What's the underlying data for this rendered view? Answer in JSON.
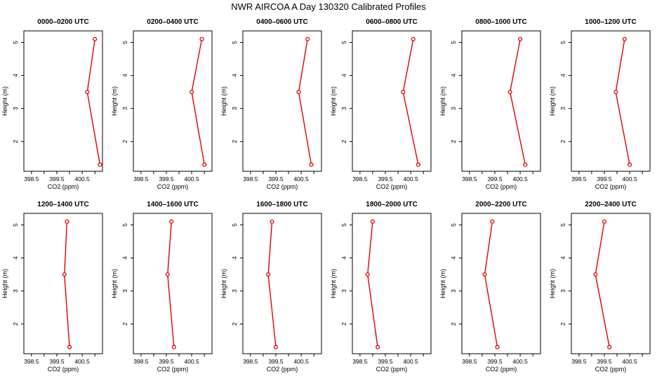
{
  "title": "NWR AIRCOA A  Day 130320  Calibrated Profiles",
  "colors": {
    "series": "#dd0000",
    "axis": "#000000",
    "background": "#ffffff"
  },
  "chart_data": [
    {
      "type": "line",
      "title": "0000–0200 UTC",
      "xlabel": "CO2 (ppm)",
      "ylabel": "Height (m)",
      "xlim": [
        398.2,
        401.3
      ],
      "ylim": [
        1.1,
        5.35
      ],
      "xticks": [
        "398.5",
        "399.5",
        "400.5"
      ],
      "yticks": [
        "2",
        "3",
        "4",
        "5"
      ],
      "grid": false,
      "points": [
        {
          "x": 401.2,
          "y": 1.3
        },
        {
          "x": 400.7,
          "y": 3.5
        },
        {
          "x": 401.0,
          "y": 5.1
        }
      ]
    },
    {
      "type": "line",
      "title": "0200–0400 UTC",
      "xlabel": "CO2 (ppm)",
      "ylabel": "Height (m)",
      "xlim": [
        398.2,
        401.3
      ],
      "ylim": [
        1.1,
        5.35
      ],
      "xticks": [
        "398.5",
        "399.5",
        "400.5"
      ],
      "yticks": [
        "2",
        "3",
        "4",
        "5"
      ],
      "grid": false,
      "points": [
        {
          "x": 401.0,
          "y": 1.3
        },
        {
          "x": 400.5,
          "y": 3.5
        },
        {
          "x": 400.9,
          "y": 5.1
        }
      ]
    },
    {
      "type": "line",
      "title": "0400–0600 UTC",
      "xlabel": "CO2 (ppm)",
      "ylabel": "Height (m)",
      "xlim": [
        398.2,
        401.3
      ],
      "ylim": [
        1.1,
        5.35
      ],
      "xticks": [
        "398.5",
        "399.5",
        "400.5"
      ],
      "yticks": [
        "2",
        "3",
        "4",
        "5"
      ],
      "grid": false,
      "points": [
        {
          "x": 400.9,
          "y": 1.3
        },
        {
          "x": 400.4,
          "y": 3.5
        },
        {
          "x": 400.75,
          "y": 5.1
        }
      ]
    },
    {
      "type": "line",
      "title": "0600–0800 UTC",
      "xlabel": "CO2 (ppm)",
      "ylabel": "Height (m)",
      "xlim": [
        398.2,
        401.3
      ],
      "ylim": [
        1.1,
        5.35
      ],
      "xticks": [
        "398.5",
        "399.5",
        "400.5"
      ],
      "yticks": [
        "2",
        "3",
        "4",
        "5"
      ],
      "grid": false,
      "points": [
        {
          "x": 400.8,
          "y": 1.3
        },
        {
          "x": 400.2,
          "y": 3.5
        },
        {
          "x": 400.6,
          "y": 5.1
        }
      ]
    },
    {
      "type": "line",
      "title": "0800–1000 UTC",
      "xlabel": "CO2 (ppm)",
      "ylabel": "Height (m)",
      "xlim": [
        398.2,
        401.3
      ],
      "ylim": [
        1.1,
        5.35
      ],
      "xticks": [
        "398.5",
        "399.5",
        "400.5"
      ],
      "yticks": [
        "2",
        "3",
        "4",
        "5"
      ],
      "grid": false,
      "points": [
        {
          "x": 400.7,
          "y": 1.3
        },
        {
          "x": 400.1,
          "y": 3.5
        },
        {
          "x": 400.5,
          "y": 5.1
        }
      ]
    },
    {
      "type": "line",
      "title": "1000–1200 UTC",
      "xlabel": "CO2 (ppm)",
      "ylabel": "Height (m)",
      "xlim": [
        398.2,
        401.3
      ],
      "ylim": [
        1.1,
        5.35
      ],
      "xticks": [
        "398.5",
        "399.5",
        "400.5"
      ],
      "yticks": [
        "2",
        "3",
        "4",
        "5"
      ],
      "grid": false,
      "points": [
        {
          "x": 400.5,
          "y": 1.3
        },
        {
          "x": 399.95,
          "y": 3.5
        },
        {
          "x": 400.3,
          "y": 5.1
        }
      ]
    },
    {
      "type": "line",
      "title": "1200–1400 UTC",
      "xlabel": "CO2 (ppm)",
      "ylabel": "Height (m)",
      "xlim": [
        398.2,
        401.3
      ],
      "ylim": [
        1.1,
        5.35
      ],
      "xticks": [
        "398.5",
        "399.5",
        "400.5"
      ],
      "yticks": [
        "2",
        "3",
        "4",
        "5"
      ],
      "grid": false,
      "points": [
        {
          "x": 400.0,
          "y": 1.3
        },
        {
          "x": 399.8,
          "y": 3.5
        },
        {
          "x": 399.9,
          "y": 5.1
        }
      ]
    },
    {
      "type": "line",
      "title": "1400–1600 UTC",
      "xlabel": "CO2 (ppm)",
      "ylabel": "Height (m)",
      "xlim": [
        398.2,
        401.3
      ],
      "ylim": [
        1.1,
        5.35
      ],
      "xticks": [
        "398.5",
        "399.5",
        "400.5"
      ],
      "yticks": [
        "2",
        "3",
        "4",
        "5"
      ],
      "grid": false,
      "points": [
        {
          "x": 399.8,
          "y": 1.3
        },
        {
          "x": 399.55,
          "y": 3.5
        },
        {
          "x": 399.7,
          "y": 5.1
        }
      ]
    },
    {
      "type": "line",
      "title": "1600–1800 UTC",
      "xlabel": "CO2 (ppm)",
      "ylabel": "Height (m)",
      "xlim": [
        398.2,
        401.3
      ],
      "ylim": [
        1.1,
        5.35
      ],
      "xticks": [
        "398.5",
        "399.5",
        "400.5"
      ],
      "yticks": [
        "2",
        "3",
        "4",
        "5"
      ],
      "grid": false,
      "points": [
        {
          "x": 399.5,
          "y": 1.3
        },
        {
          "x": 399.2,
          "y": 3.5
        },
        {
          "x": 399.35,
          "y": 5.1
        }
      ]
    },
    {
      "type": "line",
      "title": "1800–2000 UTC",
      "xlabel": "CO2 (ppm)",
      "ylabel": "Height (m)",
      "xlim": [
        398.2,
        401.3
      ],
      "ylim": [
        1.1,
        5.35
      ],
      "xticks": [
        "398.5",
        "399.5",
        "400.5"
      ],
      "yticks": [
        "2",
        "3",
        "4",
        "5"
      ],
      "grid": false,
      "points": [
        {
          "x": 399.2,
          "y": 1.3
        },
        {
          "x": 398.8,
          "y": 3.5
        },
        {
          "x": 399.0,
          "y": 5.1
        }
      ]
    },
    {
      "type": "line",
      "title": "2000–2200 UTC",
      "xlabel": "CO2 (ppm)",
      "ylabel": "Height (m)",
      "xlim": [
        398.2,
        401.3
      ],
      "ylim": [
        1.1,
        5.35
      ],
      "xticks": [
        "398.5",
        "399.5",
        "400.5"
      ],
      "yticks": [
        "2",
        "3",
        "4",
        "5"
      ],
      "grid": false,
      "points": [
        {
          "x": 399.6,
          "y": 1.3
        },
        {
          "x": 399.1,
          "y": 3.5
        },
        {
          "x": 399.4,
          "y": 5.1
        }
      ]
    },
    {
      "type": "line",
      "title": "2200–2400 UTC",
      "xlabel": "CO2 (ppm)",
      "ylabel": "Height (m)",
      "xlim": [
        398.2,
        401.3
      ],
      "ylim": [
        1.1,
        5.35
      ],
      "xticks": [
        "398.5",
        "399.5",
        "400.5"
      ],
      "yticks": [
        "2",
        "3",
        "4",
        "5"
      ],
      "grid": false,
      "points": [
        {
          "x": 399.7,
          "y": 1.3
        },
        {
          "x": 399.15,
          "y": 3.5
        },
        {
          "x": 399.5,
          "y": 5.1
        }
      ]
    }
  ]
}
